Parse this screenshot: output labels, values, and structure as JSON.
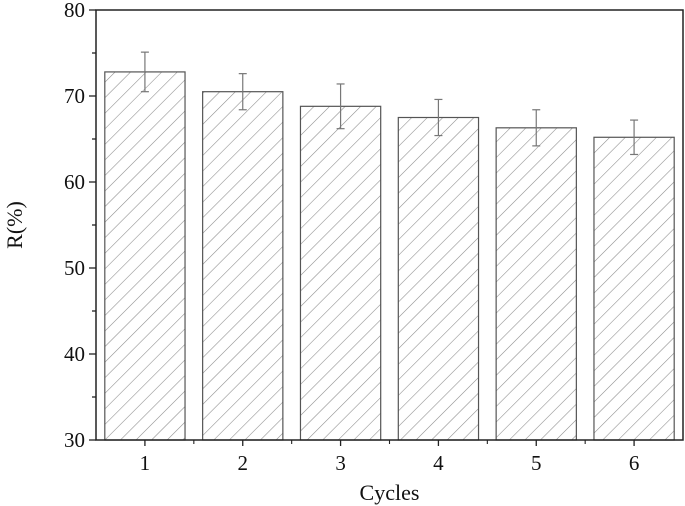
{
  "chart_data": {
    "type": "bar",
    "title": "",
    "xlabel": "Cycles",
    "ylabel": "R(%)",
    "categories": [
      "1",
      "2",
      "3",
      "4",
      "5",
      "6"
    ],
    "values": [
      72.8,
      70.5,
      68.8,
      67.5,
      66.3,
      65.2
    ],
    "error": [
      2.3,
      2.1,
      2.6,
      2.1,
      2.1,
      2.0
    ],
    "ylim": [
      30,
      80
    ],
    "yticks": [
      "30",
      "40",
      "50",
      "60",
      "70",
      "80"
    ],
    "bar_fill": "diagonal-hatch",
    "colors": {
      "bar_edge": "#555555",
      "hatch": "#8a8a8a",
      "axis": "#222222",
      "error_bar": "#777777"
    },
    "grid": false,
    "legend": "none"
  }
}
